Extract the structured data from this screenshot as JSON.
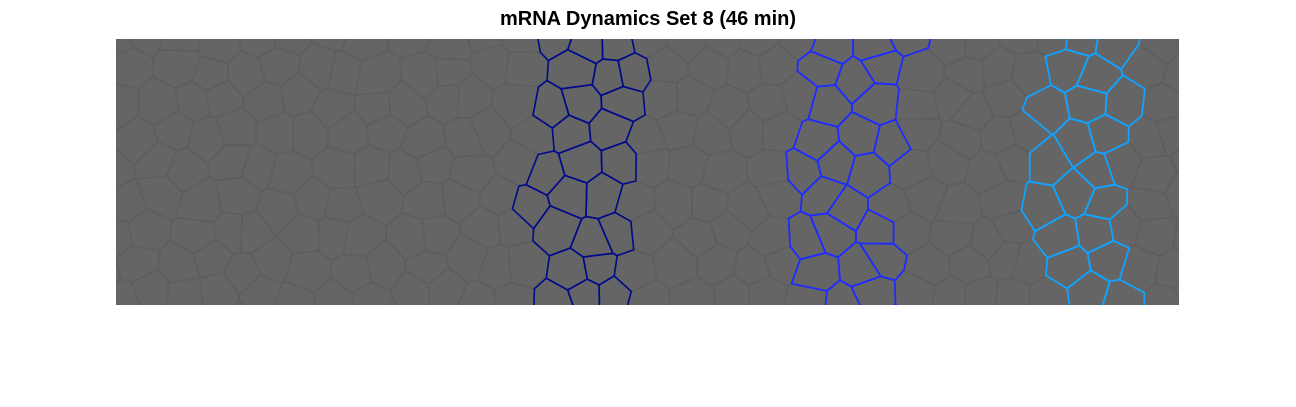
{
  "figure": {
    "title": "mRNA Dynamics Set 8 (46 min)"
  },
  "tissue": {
    "background_color": "#656565",
    "cell_edge_color": "#5e5e5e",
    "stripes": [
      {
        "color": "#000a8a"
      },
      {
        "color": "#1f2cff"
      },
      {
        "color": "#12a2ff"
      }
    ]
  }
}
